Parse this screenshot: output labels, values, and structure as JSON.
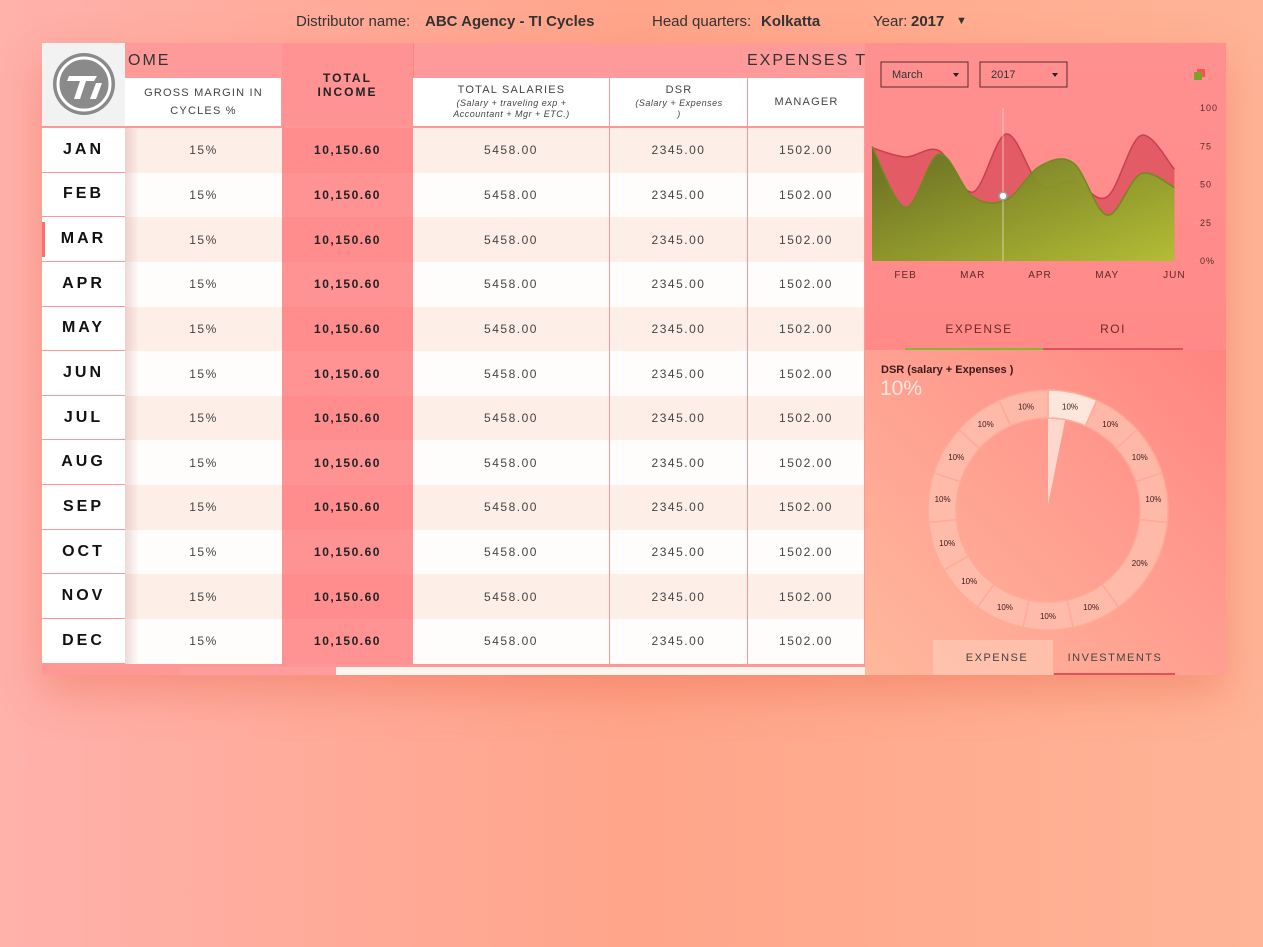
{
  "header": {
    "distributor_label": "Distributor name:",
    "distributor": "ABC Agency - TI Cycles",
    "headquarters_label": "Head quarters:",
    "headquarters": "Kolkatta",
    "year_label": "Year:",
    "year": "2017"
  },
  "table": {
    "sections": [
      "OME",
      "EXPENSES T"
    ],
    "columns": [
      {
        "title": "GROSS MARGIN IN CYCLES %"
      },
      {
        "title": "TOTAL INCOME"
      },
      {
        "title": "TOTAL SALARIES",
        "subtitle": "(Salary + traveling exp + Accountant + Mgr + ETC.)"
      },
      {
        "title": "DSR",
        "subtitle": "(Salary + Expenses )"
      },
      {
        "title": "MANAGER"
      }
    ],
    "rows": [
      {
        "month": "JAN",
        "cells": [
          "15%",
          "10,150.60",
          "5458.00",
          "2345.00",
          "1502.00"
        ]
      },
      {
        "month": "FEB",
        "cells": [
          "15%",
          "10,150.60",
          "5458.00",
          "2345.00",
          "1502.00"
        ]
      },
      {
        "month": "MAR",
        "cells": [
          "15%",
          "10,150.60",
          "5458.00",
          "2345.00",
          "1502.00"
        ]
      },
      {
        "month": "APR",
        "cells": [
          "15%",
          "10,150.60",
          "5458.00",
          "2345.00",
          "1502.00"
        ]
      },
      {
        "month": "MAY",
        "cells": [
          "15%",
          "10,150.60",
          "5458.00",
          "2345.00",
          "1502.00"
        ]
      },
      {
        "month": "JUN",
        "cells": [
          "15%",
          "10,150.60",
          "5458.00",
          "2345.00",
          "1502.00"
        ]
      },
      {
        "month": "JUL",
        "cells": [
          "15%",
          "10,150.60",
          "5458.00",
          "2345.00",
          "1502.00"
        ]
      },
      {
        "month": "AUG",
        "cells": [
          "15%",
          "10,150.60",
          "5458.00",
          "2345.00",
          "1502.00"
        ]
      },
      {
        "month": "SEP",
        "cells": [
          "15%",
          "10,150.60",
          "5458.00",
          "2345.00",
          "1502.00"
        ]
      },
      {
        "month": "OCT",
        "cells": [
          "15%",
          "10,150.60",
          "5458.00",
          "2345.00",
          "1502.00"
        ]
      },
      {
        "month": "NOV",
        "cells": [
          "15%",
          "10,150.60",
          "5458.00",
          "2345.00",
          "1502.00"
        ]
      },
      {
        "month": "DEC",
        "cells": [
          "15%",
          "10,150.60",
          "5458.00",
          "2345.00",
          "1502.00"
        ]
      }
    ]
  },
  "filters": {
    "month": "March",
    "year": "2017"
  },
  "chart_tabs": [
    "EXPENSE",
    "ROI"
  ],
  "pie_tabs": [
    "EXPENSE",
    "INVESTMENTS"
  ],
  "chart_data": [
    {
      "type": "area",
      "categories": [
        null,
        "FEB",
        null,
        "MAR",
        null,
        "APR",
        null,
        "MAY",
        null,
        "JUN"
      ],
      "series": [
        {
          "color": "#e0555f",
          "values": [
            74,
            68,
            72,
            45,
            83,
            50,
            52,
            42,
            82,
            60
          ]
        },
        {
          "color": "#8fae2a",
          "values": [
            75,
            35,
            70,
            42,
            40,
            62,
            64,
            30,
            57,
            48
          ]
        }
      ],
      "ylim": [
        0,
        100
      ],
      "yticks": [
        {
          "value": 0,
          "label": "0%"
        },
        25,
        50,
        75,
        100
      ]
    },
    {
      "type": "pie",
      "title": "DSR (salary + Expenses )",
      "annotation": "10%",
      "values": [
        10,
        10,
        10,
        10,
        20,
        10,
        10,
        10,
        10,
        10,
        10,
        10,
        10,
        10
      ],
      "value_labels": [
        "10%",
        "10%",
        "10%",
        "10%",
        "20%",
        "10%",
        "10%",
        "10%",
        "10%",
        "10%",
        "10%",
        "10%",
        "10%",
        "10%"
      ],
      "color": "#ffbfae",
      "highlight": 0,
      "highlight_color": "#ffe6dc"
    }
  ]
}
